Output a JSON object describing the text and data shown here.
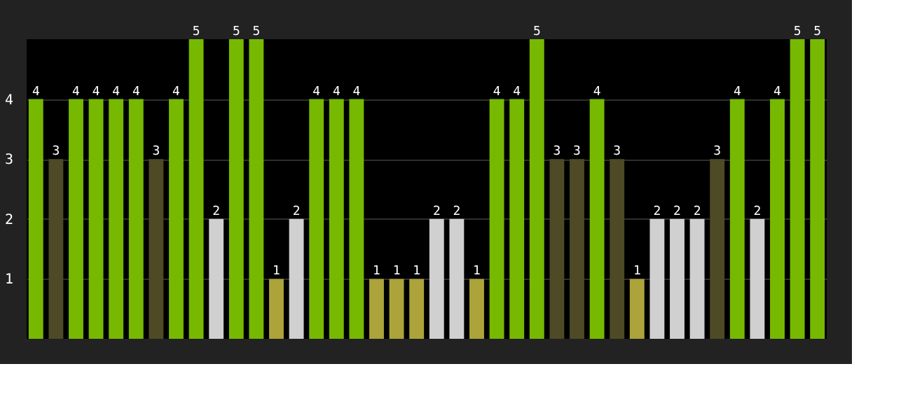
{
  "chart_data": {
    "type": "bar",
    "categories": [
      null,
      null,
      null,
      null,
      null,
      null,
      null,
      null,
      null,
      null,
      null,
      null,
      null,
      null,
      null,
      null,
      null,
      null,
      null,
      null,
      null,
      null,
      null,
      null,
      null,
      null,
      null,
      null,
      null,
      null,
      null,
      null,
      null,
      null,
      null,
      null,
      null,
      null,
      null,
      null
    ],
    "values": [
      4,
      3,
      4,
      4,
      4,
      4,
      3,
      4,
      5,
      2,
      5,
      5,
      1,
      2,
      4,
      4,
      4,
      1,
      1,
      1,
      2,
      2,
      1,
      4,
      4,
      5,
      3,
      3,
      4,
      3,
      1,
      2,
      2,
      2,
      3,
      4,
      2,
      4,
      5,
      5
    ],
    "colors": [
      "#76b900",
      "#4d4a25",
      "#76b900",
      "#76b900",
      "#76b900",
      "#76b900",
      "#4d4a25",
      "#76b900",
      "#76b900",
      "#d0d0d0",
      "#76b900",
      "#76b900",
      "#aca33a",
      "#d0d0d0",
      "#76b900",
      "#76b900",
      "#76b900",
      "#aca33a",
      "#aca33a",
      "#aca33a",
      "#d0d0d0",
      "#d0d0d0",
      "#aca33a",
      "#76b900",
      "#76b900",
      "#76b900",
      "#4d4a25",
      "#4d4a25",
      "#76b900",
      "#4d4a25",
      "#aca33a",
      "#d0d0d0",
      "#d0d0d0",
      "#d0d0d0",
      "#4d4a25",
      "#76b900",
      "#d0d0d0",
      "#76b900",
      "#76b900",
      "#76b900"
    ],
    "ylim": [
      0,
      5
    ],
    "yticks": [
      1,
      2,
      3,
      4
    ],
    "grid": "y",
    "tick_labels": "y",
    "data_labels": true
  }
}
